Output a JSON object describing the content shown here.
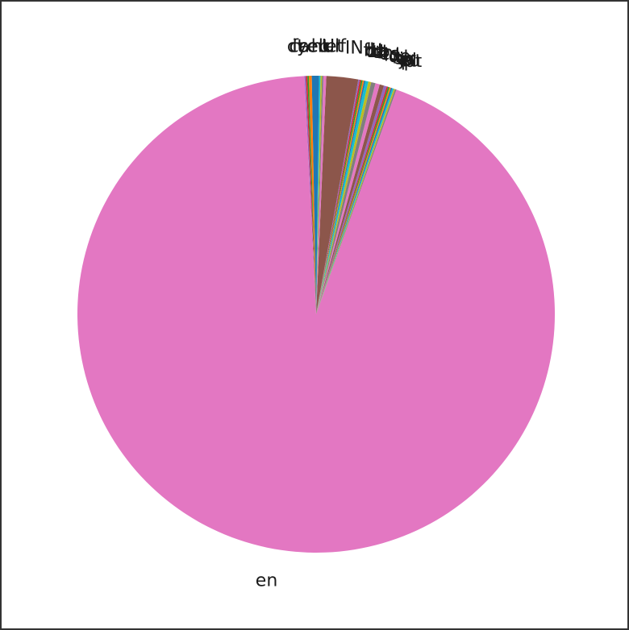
{
  "chart_data": {
    "type": "pie",
    "title": "",
    "start_angle_deg": 90,
    "direction": "counterclockwise",
    "slices": [
      {
        "label": "ceb",
        "value": 0.3,
        "color": "#1f77b4"
      },
      {
        "label": "ca",
        "value": 0.2,
        "color": "#ff7f0e"
      },
      {
        "label": "cy",
        "value": 0.1,
        "color": "#2ca02c"
      },
      {
        "label": "fr",
        "value": 0.1,
        "color": "#d62728"
      },
      {
        "label": "it",
        "value": 0.1,
        "color": "#9467bd"
      },
      {
        "label": "en",
        "value": 96.1,
        "color": "#e377c2"
      },
      {
        "label": "pt",
        "value": 0.1,
        "color": "#7f7f7f"
      },
      {
        "label": "ru",
        "value": 0.1,
        "color": "#bcbd22"
      },
      {
        "label": "pl",
        "value": 0.1,
        "color": "#17becf"
      },
      {
        "label": "ja",
        "value": 0.1,
        "color": "#1f77b4"
      },
      {
        "label": "ar",
        "value": 0.1,
        "color": "#ff7f0e"
      },
      {
        "label": "tr",
        "value": 0.1,
        "color": "#2ca02c"
      },
      {
        "label": "sv",
        "value": 0.1,
        "color": "#d62728"
      },
      {
        "label": "nl",
        "value": 0.2,
        "color": "#9467bd"
      },
      {
        "label": "de",
        "value": 0.3,
        "color": "#8c564b"
      },
      {
        "label": "id",
        "value": 0.3,
        "color": "#e377c2"
      },
      {
        "label": "es",
        "value": 0.3,
        "color": "#7f7f7f"
      },
      {
        "label": "th",
        "value": 0.2,
        "color": "#bcbd22"
      },
      {
        "label": "tl",
        "value": 0.2,
        "color": "#17becf"
      },
      {
        "label": "ko",
        "value": 0.1,
        "color": "#1f77b4"
      },
      {
        "label": "zh",
        "value": 0.1,
        "color": "#ff7f0e"
      },
      {
        "label": "hi",
        "value": 0.1,
        "color": "#2ca02c"
      },
      {
        "label": "da",
        "value": 0.1,
        "color": "#d62728"
      },
      {
        "label": "fi",
        "value": 0.1,
        "color": "#9467bd"
      },
      {
        "label": "IN",
        "value": 2.2,
        "color": "#8c564b"
      },
      {
        "label": "et",
        "value": 0.2,
        "color": "#e377c2"
      },
      {
        "label": "ur",
        "value": 0.1,
        "color": "#7f7f7f"
      },
      {
        "label": "Ulf",
        "value": 0.1,
        "color": "#bcbd22"
      },
      {
        "label": "ht",
        "value": 0.1,
        "color": "#17becf"
      },
      {
        "label": "eu",
        "value": 0.2,
        "color": "#1f77b4"
      }
    ]
  }
}
